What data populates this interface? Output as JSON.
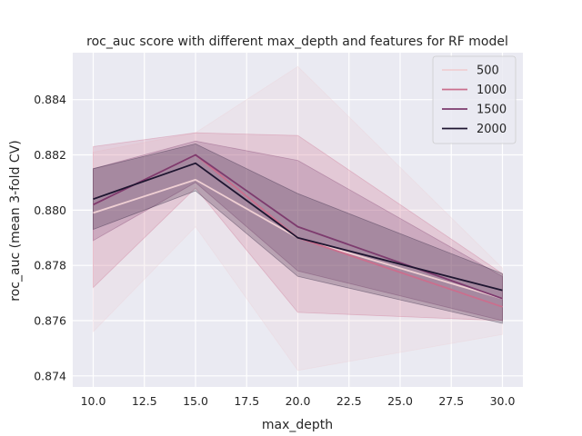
{
  "chart_data": {
    "type": "line",
    "title": "roc_auc score with different max_depth and features for RF model",
    "xlabel": "max_depth",
    "ylabel": "roc_auc (mean 3-fold CV)",
    "x": [
      10,
      15,
      20,
      30
    ],
    "xlim": [
      9.0,
      31.0
    ],
    "ylim": [
      0.8736,
      0.8857
    ],
    "xticks": [
      10.0,
      12.5,
      15.0,
      17.5,
      20.0,
      22.5,
      25.0,
      27.5,
      30.0
    ],
    "xtick_labels": [
      "10.0",
      "12.5",
      "15.0",
      "17.5",
      "20.0",
      "22.5",
      "25.0",
      "27.5",
      "30.0"
    ],
    "yticks": [
      0.874,
      0.876,
      0.878,
      0.88,
      0.882,
      0.884
    ],
    "ytick_labels": [
      "0.874",
      "0.876",
      "0.878",
      "0.880",
      "0.882",
      "0.884"
    ],
    "grid": true,
    "legend_position": "top-right",
    "series": [
      {
        "name": "500",
        "color": "#efcfd3",
        "values": [
          0.8799,
          0.8811,
          0.879,
          0.8768
        ],
        "lower": [
          0.8756,
          0.8794,
          0.8742,
          0.8755
        ],
        "upper": [
          0.8821,
          0.8828,
          0.8852,
          0.8779
        ]
      },
      {
        "name": "1000",
        "color": "#cb6e8d",
        "values": [
          0.8802,
          0.882,
          0.879,
          0.8765
        ],
        "lower": [
          0.8772,
          0.8808,
          0.8763,
          0.876
        ],
        "upper": [
          0.8823,
          0.8828,
          0.8827,
          0.8777
        ]
      },
      {
        "name": "1500",
        "color": "#7d3b6e",
        "values": [
          0.8802,
          0.882,
          0.8794,
          0.8768
        ],
        "lower": [
          0.8789,
          0.881,
          0.8778,
          0.876
        ],
        "upper": [
          0.8815,
          0.8825,
          0.8818,
          0.8776
        ]
      },
      {
        "name": "2000",
        "color": "#1e1530",
        "values": [
          0.8804,
          0.8817,
          0.879,
          0.8771
        ],
        "lower": [
          0.8793,
          0.8807,
          0.8776,
          0.8759
        ],
        "upper": [
          0.8815,
          0.8824,
          0.8806,
          0.8777
        ]
      }
    ]
  },
  "colors": {
    "plot_background": "#eaeaf2",
    "grid": "#ffffff",
    "text": "#262626"
  }
}
